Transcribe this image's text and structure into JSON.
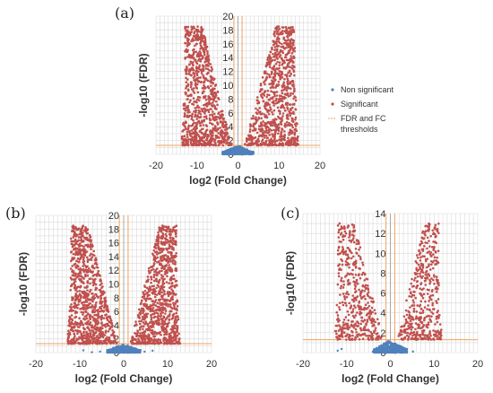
{
  "chart_data": [
    {
      "panel_label": "(a)",
      "type": "scatter",
      "xlabel": "log2 (Fold Change)",
      "ylabel": "-log10 (FDR)",
      "xlim": [
        -20,
        20
      ],
      "ylim": [
        0,
        20
      ],
      "xticks": [
        -20,
        -10,
        0,
        10,
        20
      ],
      "yticks": [
        0,
        2,
        4,
        6,
        8,
        10,
        12,
        14,
        16,
        18,
        20
      ],
      "grid": true,
      "fdr_threshold": 1.3,
      "fc_thresholds": [
        -1,
        1
      ],
      "legend": {
        "placement": "right",
        "entries": [
          {
            "label": "Non significant",
            "color": "#4f81bd"
          },
          {
            "label": "Significant",
            "color": "#c0504d"
          },
          {
            "label": "FDR and FC thresholds",
            "color": "#f0a35e"
          }
        ]
      },
      "series": [
        {
          "name": "Non significant",
          "color": "#4f81bd",
          "count": 400,
          "x_range": [
            -4,
            4
          ],
          "y_max": 1.3
        },
        {
          "name": "Significant",
          "color": "#c0504d",
          "count": 1800,
          "x_range": [
            -14,
            15
          ],
          "y_max": 18.5
        }
      ]
    },
    {
      "panel_label": "(b)",
      "type": "scatter",
      "xlabel": "log2 (Fold Change)",
      "ylabel": "-log10 (FDR)",
      "xlim": [
        -20,
        20
      ],
      "ylim": [
        0,
        20
      ],
      "xticks": [
        -20,
        -10,
        0,
        10,
        20
      ],
      "yticks": [
        0,
        2,
        4,
        6,
        8,
        10,
        12,
        14,
        16,
        18,
        20
      ],
      "grid": true,
      "fdr_threshold": 1.3,
      "fc_thresholds": [
        -1,
        1
      ],
      "series": [
        {
          "name": "Non significant",
          "color": "#4f81bd",
          "count": 450,
          "x_range": [
            -10,
            9
          ],
          "y_max": 1.3
        },
        {
          "name": "Significant",
          "color": "#c0504d",
          "count": 1900,
          "x_range": [
            -13,
            13
          ],
          "y_max": 18.5
        }
      ]
    },
    {
      "panel_label": "(c)",
      "type": "scatter",
      "xlabel": "log2 (Fold Change)",
      "ylabel": "-log10 (FDR)",
      "xlim": [
        -20,
        20
      ],
      "ylim": [
        0,
        14
      ],
      "xticks": [
        -20,
        -10,
        0,
        10,
        20
      ],
      "yticks": [
        0,
        2,
        4,
        6,
        8,
        10,
        12,
        14
      ],
      "grid": true,
      "fdr_threshold": 1.3,
      "fc_thresholds": [
        -1,
        1
      ],
      "series": [
        {
          "name": "Non significant",
          "color": "#4f81bd",
          "count": 500,
          "x_range": [
            -13,
            9
          ],
          "y_max": 1.3
        },
        {
          "name": "Significant",
          "color": "#c0504d",
          "count": 900,
          "x_range": [
            -13,
            12
          ],
          "y_max": 13
        }
      ]
    }
  ]
}
